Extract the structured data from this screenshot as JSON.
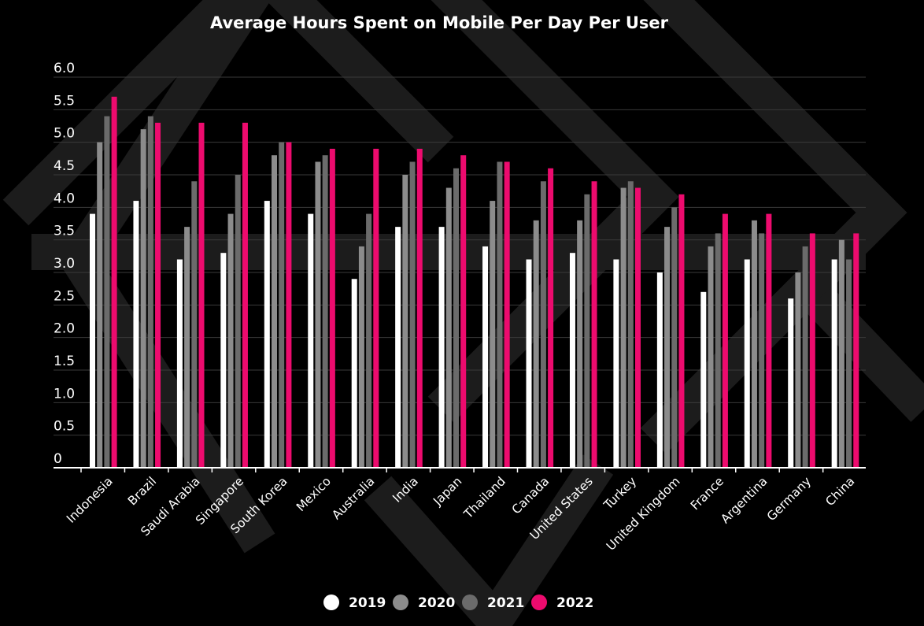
{
  "chart_data": {
    "type": "bar",
    "title": "Average Hours Spent on Mobile Per Day Per User",
    "xlabel": "",
    "ylabel": "",
    "ylim": [
      0,
      6
    ],
    "yticks": [
      "0",
      "0.5",
      "1.0",
      "1.5",
      "2.0",
      "2.5",
      "3.0",
      "3.5",
      "4.0",
      "4.5",
      "5.0",
      "5.5",
      "6.0"
    ],
    "grid": true,
    "legend_position": "bottom-center",
    "categories": [
      "Indonesia",
      "Brazil",
      "Saudi Arabia",
      "Singapore",
      "South Korea",
      "Mexico",
      "Australia",
      "India",
      "Japan",
      "Thailand",
      "Canada",
      "United States",
      "Turkey",
      "United Kingdom",
      "France",
      "Argentina",
      "Germany",
      "China"
    ],
    "series": [
      {
        "name": "2019",
        "color": "#ffffff",
        "values": [
          3.9,
          4.1,
          3.2,
          3.3,
          4.1,
          3.9,
          2.9,
          3.7,
          3.7,
          3.4,
          3.2,
          3.3,
          3.2,
          3.0,
          2.7,
          3.2,
          2.6,
          3.2
        ]
      },
      {
        "name": "2020",
        "color": "#8c8c8c",
        "values": [
          5.0,
          5.2,
          3.7,
          3.9,
          4.8,
          4.7,
          3.4,
          4.5,
          4.3,
          4.1,
          3.8,
          3.8,
          4.3,
          3.7,
          3.4,
          3.8,
          3.0,
          3.5
        ]
      },
      {
        "name": "2021",
        "color": "#6b6b6b",
        "values": [
          5.4,
          5.4,
          4.4,
          4.5,
          5.0,
          4.8,
          3.9,
          4.7,
          4.6,
          4.7,
          4.4,
          4.2,
          4.4,
          4.0,
          3.6,
          3.6,
          3.4,
          3.2
        ]
      },
      {
        "name": "2022",
        "color": "#ed0b6e",
        "values": [
          5.7,
          5.3,
          5.3,
          5.3,
          5.0,
          4.9,
          4.9,
          4.9,
          4.8,
          4.7,
          4.6,
          4.4,
          4.3,
          4.2,
          3.9,
          3.9,
          3.6,
          3.6
        ]
      }
    ]
  }
}
